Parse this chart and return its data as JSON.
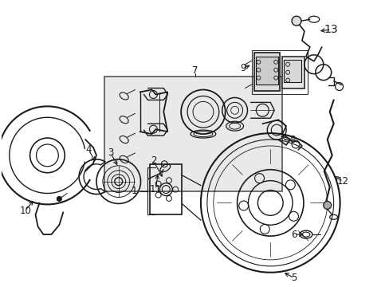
{
  "background_color": "#ffffff",
  "fig_width": 4.89,
  "fig_height": 3.6,
  "dpi": 100,
  "line_color": "#1a1a1a",
  "box_color": "#e8eae8",
  "label_fontsize": 8.5,
  "label_bold_fontsize": 10
}
